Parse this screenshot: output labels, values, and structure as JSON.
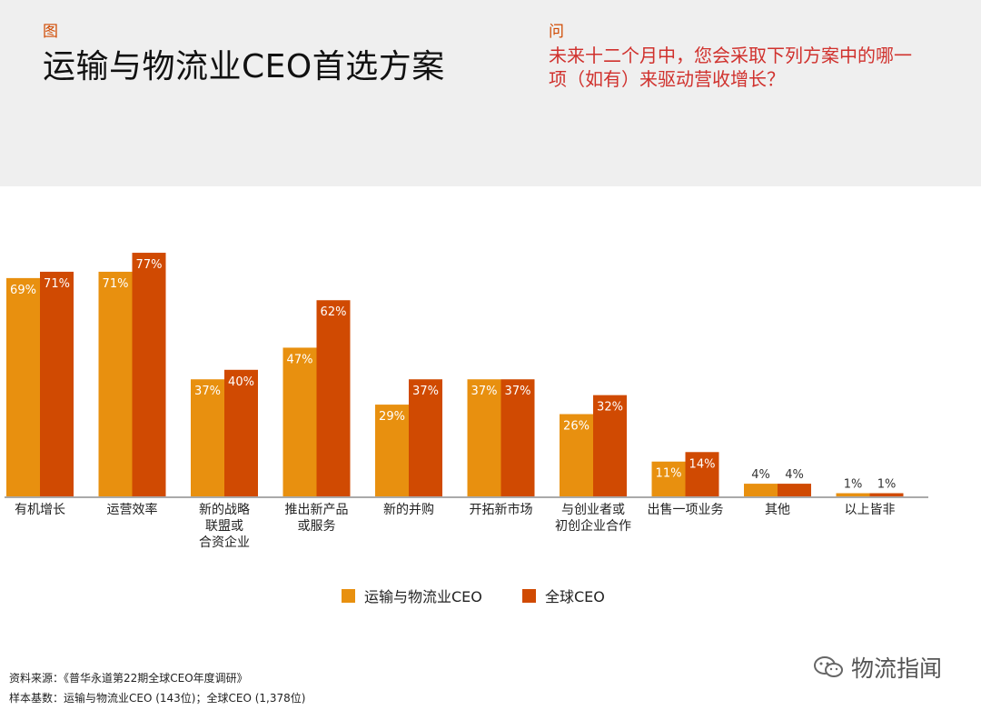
{
  "header": {
    "figure_label": "图",
    "title": "运输与物流业CEO首选方案",
    "question_label": "问",
    "question": "未来十二个月中，您会采取下列方案中的哪一项（如有）来驱动营收增长？"
  },
  "colors": {
    "transport": "#e8900f",
    "global": "#d04a02"
  },
  "chart_data": {
    "type": "bar",
    "title": "运输与物流业CEO首选方案",
    "categories": [
      [
        "有机增长"
      ],
      [
        "运营效率"
      ],
      [
        "新的战略",
        "联盟或",
        "合资企业"
      ],
      [
        "推出新产品",
        "或服务"
      ],
      [
        "新的并购"
      ],
      [
        "开拓新市场"
      ],
      [
        "与创业者或",
        "初创企业合作"
      ],
      [
        "出售一项业务"
      ],
      [
        "其他"
      ],
      [
        "以上皆非"
      ]
    ],
    "series": [
      {
        "name": "运输与物流业CEO",
        "color": "#e8900f",
        "values": [
          69,
          71,
          37,
          47,
          29,
          37,
          26,
          11,
          4,
          1
        ]
      },
      {
        "name": "全球CEO",
        "color": "#d04a02",
        "values": [
          71,
          77,
          40,
          62,
          37,
          37,
          32,
          14,
          4,
          1
        ]
      }
    ],
    "value_suffix": "%",
    "ylim": [
      0,
      100
    ],
    "grid": false,
    "legend_position": "bottom-center"
  },
  "legend": {
    "transport_label": "运输与物流业CEO",
    "global_label": "全球CEO"
  },
  "footer": {
    "source": "资料来源：《普华永道第22期全球CEO年度调研》",
    "sample": "样本基数：运输与物流业CEO (143位)；全球CEO (1,378位)"
  },
  "watermark": {
    "text": "物流指闻",
    "icon": "wechat-icon"
  }
}
